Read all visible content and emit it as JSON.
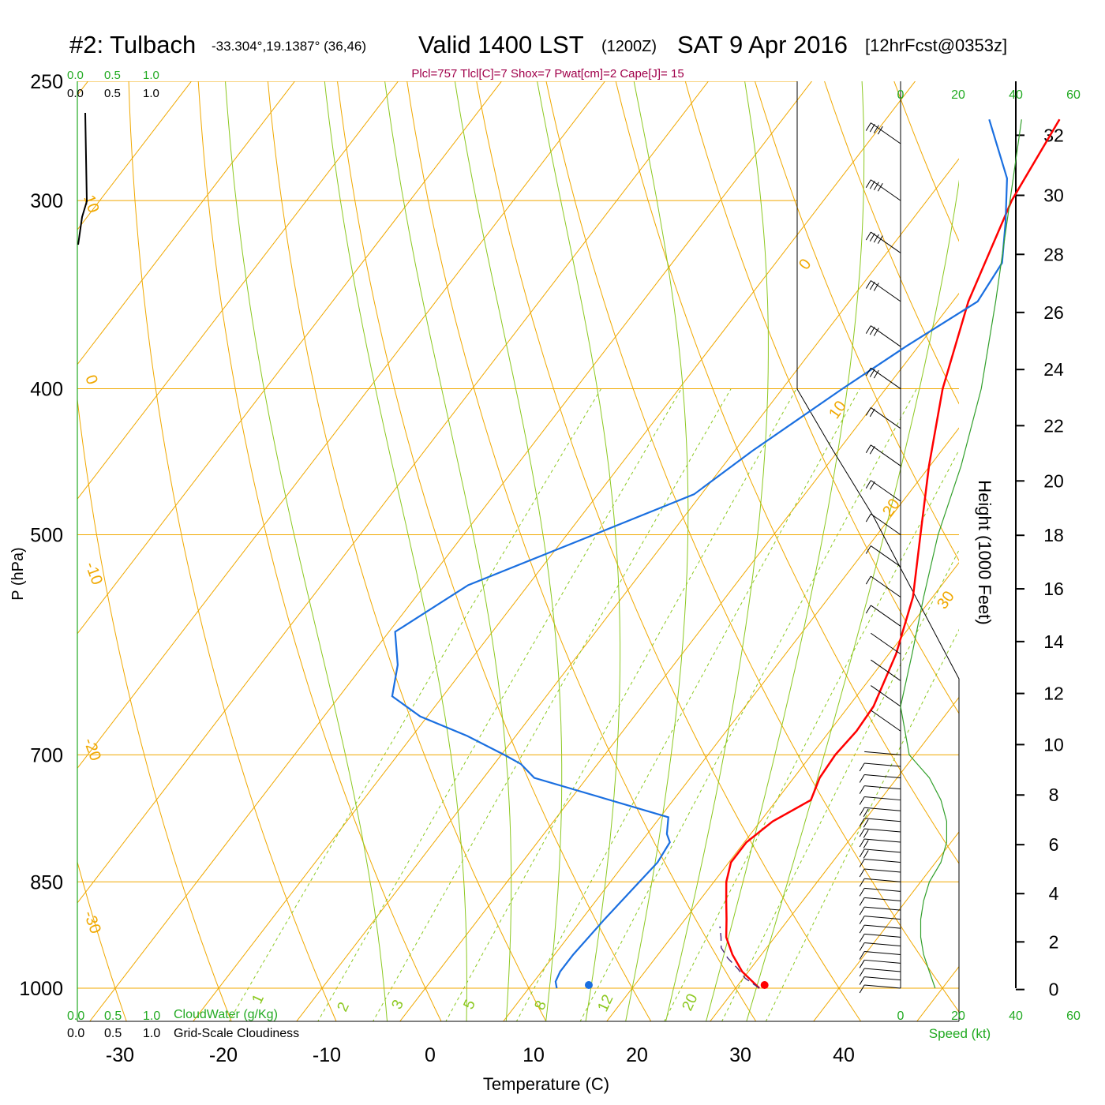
{
  "header": {
    "station": "#2: Tulbach",
    "coords": "-33.304°,19.1387° (36,46)",
    "valid": "Valid 1400 LST",
    "zulu": "(1200Z)",
    "date": "SAT 9 Apr 2016",
    "forecast": "[12hrFcst@0353z]",
    "indices": "Plcl=757 Tlcl[C]=7 Shox=7 Pwat[cm]=2 Cape[J]= 15"
  },
  "cloud_scale": {
    "water_ticks": [
      "0.0",
      "0.5",
      "1.0"
    ],
    "cover_ticks": [
      "0.0",
      "0.5",
      "1.0"
    ],
    "water_label": "CloudWater (g/Kg)",
    "cover_label": "Grid-Scale Cloudiness"
  },
  "speed_axis": {
    "ticks_green": [
      "0",
      "20",
      "40",
      "60"
    ],
    "label": "Speed (kt)"
  },
  "colors": {
    "temperature": "#ff0000",
    "dewpoint": "#1a6fe0",
    "isotherm": "#f0a800",
    "dry_adiabat": "#f0a800",
    "moist_adiabat": "#8cc820",
    "mixing_ratio": "#8cc820",
    "wind_speed": "#33a02c",
    "indices_text": "#a0004a"
  },
  "chart_data": {
    "type": "skew-t",
    "xlabel": "Temperature (C)",
    "ylabel": "P (hPa)",
    "y2label": "Height (1000 Feet)",
    "pressure_ticks": [
      250,
      300,
      400,
      500,
      700,
      850,
      1000
    ],
    "temperature_ticks": [
      -30,
      -20,
      -10,
      0,
      10,
      20,
      30,
      40
    ],
    "height_ticks": [
      0,
      2,
      4,
      6,
      8,
      10,
      12,
      14,
      16,
      18,
      20,
      22,
      24,
      26,
      28,
      30,
      32
    ],
    "isotherm_labels": [
      "10",
      "0",
      "-10",
      "-20",
      "-30",
      "0",
      "10",
      "20",
      "30"
    ],
    "mixing_ratio_labels": [
      "1",
      "2",
      "3",
      "5",
      "8",
      "12",
      "20"
    ],
    "temperature_profile": [
      [
        1000,
        32.3
      ],
      [
        975,
        29.4
      ],
      [
        950,
        27.2
      ],
      [
        925,
        25.3
      ],
      [
        900,
        24.0
      ],
      [
        875,
        22.6
      ],
      [
        850,
        21.2
      ],
      [
        825,
        20.2
      ],
      [
        800,
        20.2
      ],
      [
        775,
        21.2
      ],
      [
        750,
        23.3
      ],
      [
        725,
        22.5
      ],
      [
        700,
        22.3
      ],
      [
        675,
        22.6
      ],
      [
        650,
        22.4
      ],
      [
        600,
        20.7
      ],
      [
        550,
        18.1
      ],
      [
        500,
        14.2
      ],
      [
        450,
        9.9
      ],
      [
        400,
        5.5
      ],
      [
        350,
        1.5
      ],
      [
        300,
        -1.8
      ],
      [
        265,
        -3.2
      ]
    ],
    "dewpoint_profile": [
      [
        1000,
        12.7
      ],
      [
        990,
        12.1
      ],
      [
        975,
        11.8
      ],
      [
        950,
        11.8
      ],
      [
        900,
        12.2
      ],
      [
        850,
        12.8
      ],
      [
        825,
        13.1
      ],
      [
        800,
        12.8
      ],
      [
        790,
        11.9
      ],
      [
        770,
        10.8
      ],
      [
        725,
        -5.1
      ],
      [
        710,
        -7.4
      ],
      [
        700,
        -9.7
      ],
      [
        680,
        -14.7
      ],
      [
        660,
        -20.7
      ],
      [
        640,
        -24.9
      ],
      [
        610,
        -26.7
      ],
      [
        580,
        -29.4
      ],
      [
        540,
        -25.8
      ],
      [
        500,
        -17.4
      ],
      [
        470,
        -10.7
      ],
      [
        440,
        -8.3
      ],
      [
        400,
        -4.2
      ],
      [
        375,
        -1.2
      ],
      [
        350,
        2.4
      ],
      [
        330,
        1.9
      ],
      [
        310,
        -0.8
      ],
      [
        290,
        -3.9
      ],
      [
        265,
        -10.0
      ]
    ],
    "parcel_path": [
      [
        1000,
        32.3
      ],
      [
        985,
        30.2
      ],
      [
        970,
        28.7
      ],
      [
        955,
        27.0
      ],
      [
        940,
        25.6
      ],
      [
        925,
        24.8
      ],
      [
        910,
        23.9
      ]
    ],
    "surface_temperature": 32.8,
    "surface_dewpoint": 15.8,
    "wind_speed_profile": [
      [
        1000,
        12
      ],
      [
        975,
        10
      ],
      [
        950,
        8
      ],
      [
        925,
        7
      ],
      [
        900,
        7
      ],
      [
        875,
        8
      ],
      [
        850,
        10
      ],
      [
        825,
        14
      ],
      [
        800,
        16
      ],
      [
        775,
        16
      ],
      [
        750,
        14
      ],
      [
        725,
        10
      ],
      [
        700,
        3
      ],
      [
        650,
        0
      ],
      [
        600,
        4
      ],
      [
        550,
        8
      ],
      [
        500,
        13
      ],
      [
        450,
        21
      ],
      [
        400,
        28
      ],
      [
        350,
        33
      ],
      [
        300,
        38
      ],
      [
        265,
        42
      ]
    ]
  }
}
